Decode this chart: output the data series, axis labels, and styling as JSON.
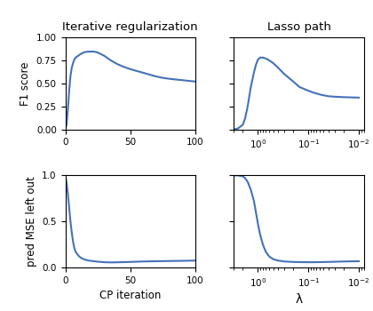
{
  "title_left": "Iterative regularization",
  "title_right": "Lasso path",
  "ylabel_top": "F1 score",
  "ylabel_bottom": "pred MSE left out",
  "xlabel_left": "CP iteration",
  "xlabel_right": "λ",
  "line_color": "#4472b8",
  "line_width": 1.5,
  "cp_f1_points": [
    [
      0,
      0.0
    ],
    [
      1,
      0.05
    ],
    [
      2,
      0.22
    ],
    [
      3,
      0.42
    ],
    [
      4,
      0.58
    ],
    [
      5,
      0.67
    ],
    [
      6,
      0.72
    ],
    [
      7,
      0.76
    ],
    [
      8,
      0.78
    ],
    [
      10,
      0.8
    ],
    [
      12,
      0.82
    ],
    [
      15,
      0.84
    ],
    [
      18,
      0.845
    ],
    [
      22,
      0.845
    ],
    [
      25,
      0.835
    ],
    [
      30,
      0.8
    ],
    [
      35,
      0.75
    ],
    [
      40,
      0.71
    ],
    [
      45,
      0.68
    ],
    [
      50,
      0.655
    ],
    [
      55,
      0.635
    ],
    [
      60,
      0.615
    ],
    [
      65,
      0.595
    ],
    [
      70,
      0.575
    ],
    [
      75,
      0.56
    ],
    [
      80,
      0.55
    ],
    [
      85,
      0.542
    ],
    [
      90,
      0.535
    ],
    [
      95,
      0.527
    ],
    [
      100,
      0.52
    ]
  ],
  "cp_mse_points": [
    [
      0,
      1.0
    ],
    [
      1,
      0.92
    ],
    [
      2,
      0.8
    ],
    [
      3,
      0.65
    ],
    [
      4,
      0.5
    ],
    [
      5,
      0.38
    ],
    [
      6,
      0.28
    ],
    [
      7,
      0.21
    ],
    [
      8,
      0.17
    ],
    [
      10,
      0.13
    ],
    [
      12,
      0.105
    ],
    [
      15,
      0.085
    ],
    [
      18,
      0.075
    ],
    [
      22,
      0.068
    ],
    [
      25,
      0.063
    ],
    [
      30,
      0.057
    ],
    [
      35,
      0.055
    ],
    [
      40,
      0.056
    ],
    [
      50,
      0.06
    ],
    [
      60,
      0.065
    ],
    [
      70,
      0.068
    ],
    [
      80,
      0.07
    ],
    [
      90,
      0.072
    ],
    [
      100,
      0.075
    ]
  ],
  "lasso_f1_points": [
    [
      3.0,
      0.0
    ],
    [
      2.5,
      0.01
    ],
    [
      2.0,
      0.05
    ],
    [
      1.8,
      0.12
    ],
    [
      1.6,
      0.25
    ],
    [
      1.4,
      0.45
    ],
    [
      1.2,
      0.62
    ],
    [
      1.1,
      0.7
    ],
    [
      1.0,
      0.76
    ],
    [
      0.9,
      0.78
    ],
    [
      0.8,
      0.78
    ],
    [
      0.7,
      0.77
    ],
    [
      0.6,
      0.75
    ],
    [
      0.5,
      0.72
    ],
    [
      0.4,
      0.67
    ],
    [
      0.3,
      0.6
    ],
    [
      0.2,
      0.52
    ],
    [
      0.15,
      0.46
    ],
    [
      0.1,
      0.42
    ],
    [
      0.08,
      0.4
    ],
    [
      0.06,
      0.38
    ],
    [
      0.05,
      0.37
    ],
    [
      0.04,
      0.36
    ],
    [
      0.03,
      0.355
    ],
    [
      0.02,
      0.35
    ],
    [
      0.01,
      0.345
    ]
  ],
  "lasso_mse_points": [
    [
      3.0,
      1.0
    ],
    [
      2.5,
      1.0
    ],
    [
      2.0,
      0.99
    ],
    [
      1.8,
      0.97
    ],
    [
      1.6,
      0.93
    ],
    [
      1.4,
      0.85
    ],
    [
      1.2,
      0.72
    ],
    [
      1.1,
      0.6
    ],
    [
      1.0,
      0.47
    ],
    [
      0.9,
      0.35
    ],
    [
      0.8,
      0.25
    ],
    [
      0.7,
      0.17
    ],
    [
      0.6,
      0.12
    ],
    [
      0.5,
      0.09
    ],
    [
      0.4,
      0.075
    ],
    [
      0.3,
      0.065
    ],
    [
      0.2,
      0.06
    ],
    [
      0.15,
      0.058
    ],
    [
      0.1,
      0.057
    ],
    [
      0.08,
      0.057
    ],
    [
      0.06,
      0.058
    ],
    [
      0.05,
      0.059
    ],
    [
      0.04,
      0.06
    ],
    [
      0.03,
      0.062
    ],
    [
      0.02,
      0.065
    ],
    [
      0.01,
      0.068
    ]
  ],
  "cp_xticks": [
    0,
    50,
    100
  ],
  "cp_f1_yticks": [
    0.0,
    0.25,
    0.5,
    0.75,
    1.0
  ],
  "cp_mse_yticks": [
    0.0,
    0.5,
    1.0
  ],
  "lasso_xlim_high": 3.0,
  "lasso_xlim_low": 0.008
}
